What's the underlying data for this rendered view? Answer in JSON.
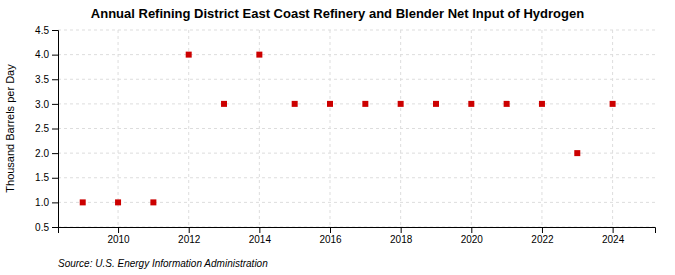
{
  "chart_data": {
    "type": "scatter",
    "title": "Annual Refining District East Coast Refinery and Blender Net Input of Hydrogen",
    "ylabel": "Thousand Barrels per Day",
    "annotation": "Source: U.S. Energy Information Administration",
    "x": [
      2009,
      2010,
      2011,
      2012,
      2013,
      2014,
      2015,
      2016,
      2017,
      2018,
      2019,
      2020,
      2021,
      2022,
      2023,
      2024
    ],
    "values": [
      1.0,
      1.0,
      1.0,
      4.0,
      3.0,
      4.0,
      3.0,
      3.0,
      3.0,
      3.0,
      3.0,
      3.0,
      3.0,
      3.0,
      2.0,
      3.0
    ],
    "color": "#cc0000",
    "marker": "square",
    "xlim": [
      2008.3,
      2025.2
    ],
    "ylim": [
      0.5,
      4.5
    ],
    "xticks": [
      2010,
      2012,
      2014,
      2016,
      2018,
      2020,
      2022,
      2024
    ],
    "yticks": [
      0.5,
      {
        "value": 1.0,
        "label": "1.0"
      },
      1.5,
      {
        "value": 2.0,
        "label": "2.0"
      },
      2.5,
      {
        "value": 3.0,
        "label": "3.0"
      },
      3.5,
      {
        "value": 4.0,
        "label": "4.0"
      },
      4.5
    ],
    "grid": true
  }
}
